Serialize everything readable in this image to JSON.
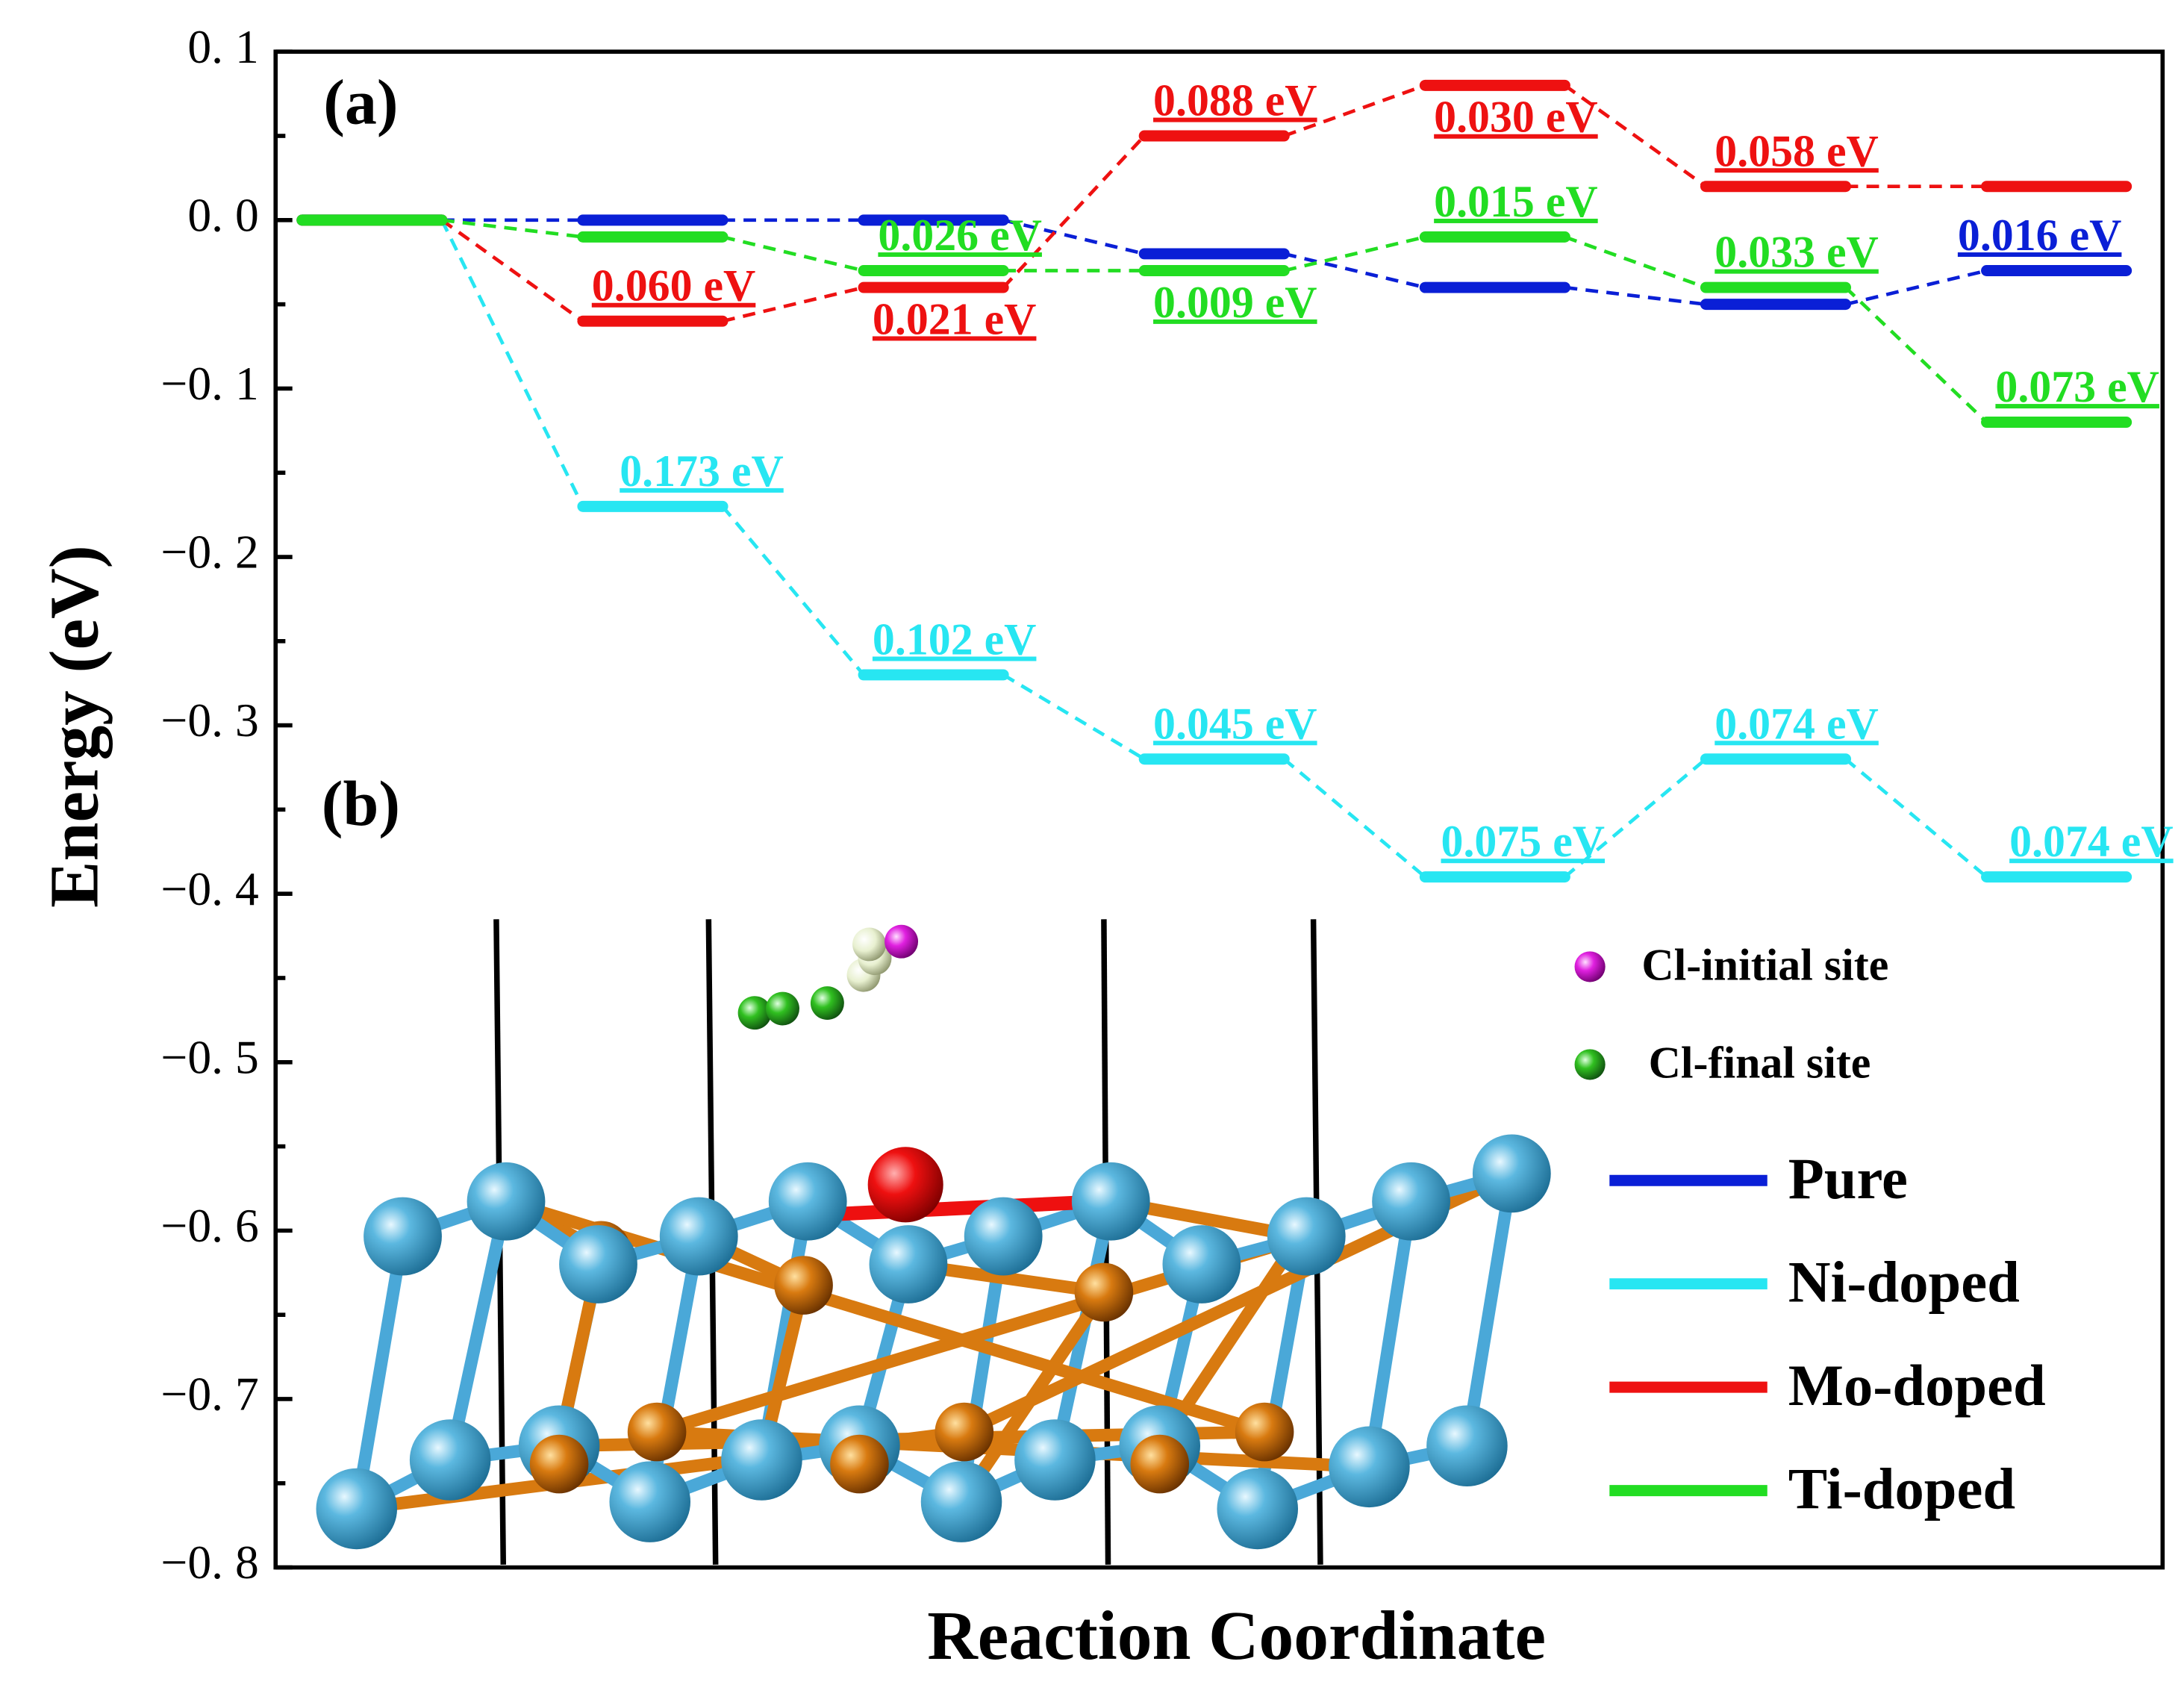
{
  "chart_data": {
    "type": "profile",
    "ylabel": "Energy (eV)",
    "xlabel": "Reaction Coordinate",
    "panel_labels": [
      "(a)",
      "(b)"
    ],
    "ylim": [
      -0.8,
      0.1
    ],
    "yticks": [
      {
        "value": -0.8,
        "label": "−0. 8"
      },
      {
        "value": -0.7,
        "label": "−0. 7"
      },
      {
        "value": -0.6,
        "label": "−0. 6"
      },
      {
        "value": -0.5,
        "label": "−0. 5"
      },
      {
        "value": -0.4,
        "label": "−0. 4"
      },
      {
        "value": -0.3,
        "label": "−0. 3"
      },
      {
        "value": -0.2,
        "label": "−0. 2"
      },
      {
        "value": -0.1,
        "label": "−0. 1"
      },
      {
        "value": 0,
        "label": "0. 0"
      },
      {
        "value": 0.1,
        "label": "0. 1"
      }
    ],
    "series": [
      {
        "name": "Pure",
        "color": "#0a1fd6",
        "values": [
          0,
          0,
          0,
          -0.02,
          -0.04,
          -0.05,
          -0.03
        ],
        "value_labels": [
          null,
          null,
          null,
          null,
          null,
          null,
          "0.016 eV"
        ]
      },
      {
        "name": "Ni-doped",
        "color": "#27e6f2",
        "values": [
          0,
          -0.17,
          -0.27,
          -0.32,
          -0.39,
          -0.32,
          -0.39
        ],
        "value_labels": [
          null,
          "0.173 eV",
          "0.102 eV",
          "0.045 eV",
          "0.075 eV",
          "0.074 eV",
          "0.074 eV"
        ]
      },
      {
        "name": "Mo-doped",
        "color": "#ee1111",
        "values": [
          0,
          -0.06,
          -0.04,
          0.05,
          0.08,
          0.02,
          0.02
        ],
        "value_labels": [
          null,
          "0.060 eV",
          "0.021 eV",
          "0.088 eV",
          "0.030 eV",
          "0.058 eV",
          null
        ]
      },
      {
        "name": "Ti-doped",
        "color": "#22dd22",
        "values": [
          0,
          -0.01,
          -0.03,
          -0.03,
          -0.01,
          -0.04,
          -0.12
        ],
        "value_labels": [
          null,
          null,
          "0.026 eV",
          "0.009 eV",
          "0.015 eV",
          "0.033 eV",
          "0.073 eV"
        ]
      }
    ],
    "inset_legend": [
      "Cl-initial site",
      "Cl-final site"
    ]
  }
}
